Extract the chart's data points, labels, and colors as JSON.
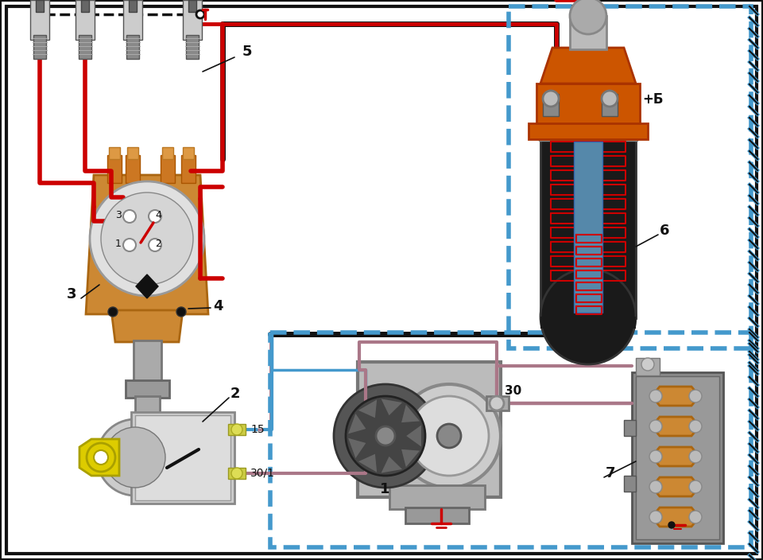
{
  "bg_color": "#ffffff",
  "red": "#cc0000",
  "orange": "#cc5500",
  "blue_hatch": "#4499cc",
  "gold": "#ccaa00",
  "gray": "#888888",
  "light_gray": "#cccccc",
  "dark_gray": "#555555",
  "yellow_key": "#ddcc00",
  "brown_wire": "#aa7788",
  "black": "#111111",
  "white": "#ffffff",
  "figsize": [
    9.6,
    7.04
  ],
  "dpi": 100
}
